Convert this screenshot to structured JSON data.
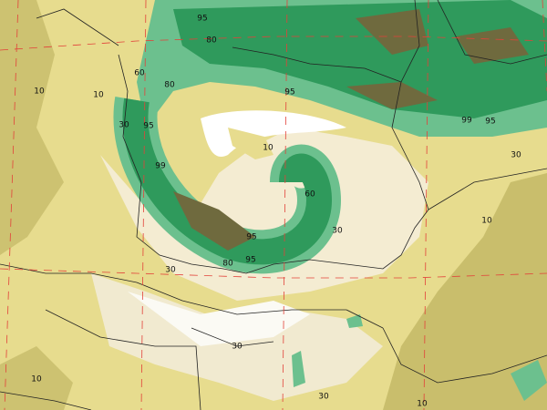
{
  "contour_labels": [
    95,
    80,
    60,
    80,
    10,
    10,
    30,
    95,
    95,
    99,
    10,
    60,
    30,
    95,
    80,
    95,
    30,
    30,
    30,
    10,
    10,
    10,
    30,
    99,
    95
  ]
}
